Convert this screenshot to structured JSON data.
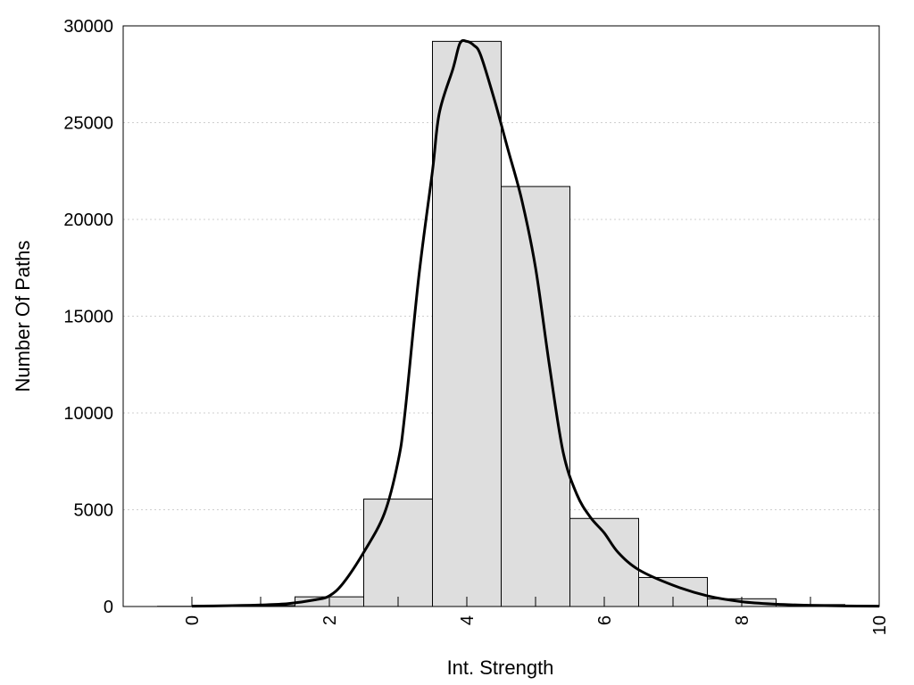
{
  "chart_data": {
    "type": "bar",
    "title": "",
    "xlabel": "Int. Strength",
    "ylabel": "Number Of Paths",
    "xlim": [
      -1,
      10
    ],
    "ylim": [
      0,
      30000
    ],
    "xticks": [
      0,
      2,
      4,
      6,
      8,
      10
    ],
    "yticks": [
      0,
      5000,
      10000,
      15000,
      20000,
      25000,
      30000
    ],
    "grid": "horizontal dotted",
    "legend": "none",
    "bar_color": "#dedede",
    "bar_edge_color": "#000000",
    "bars": {
      "x": [
        0,
        1,
        2,
        3,
        4,
        5,
        6,
        7,
        8,
        9
      ],
      "width": 1,
      "values": [
        10,
        50,
        500,
        5550,
        29200,
        21700,
        4550,
        1500,
        400,
        100
      ]
    },
    "curve": {
      "color": "#000000",
      "x": [
        0,
        0.5,
        1,
        1.4,
        1.8,
        2.0,
        2.2,
        2.5,
        2.8,
        3.0,
        3.1,
        3.3,
        3.5,
        3.6,
        3.8,
        3.9,
        4.0,
        4.1,
        4.2,
        4.4,
        4.6,
        4.8,
        5.0,
        5.2,
        5.4,
        5.6,
        5.8,
        6.0,
        6.2,
        6.5,
        7.0,
        7.5,
        8.0,
        8.5,
        9.0,
        9.5,
        10.0
      ],
      "y": [
        20,
        40,
        80,
        150,
        350,
        550,
        1200,
        2800,
        4800,
        7500,
        10000,
        17000,
        22500,
        25500,
        27800,
        29100,
        29200,
        29000,
        28500,
        26200,
        23600,
        21000,
        17500,
        12500,
        8000,
        5800,
        4600,
        3800,
        2800,
        1900,
        1100,
        550,
        250,
        120,
        60,
        30,
        15
      ]
    }
  }
}
